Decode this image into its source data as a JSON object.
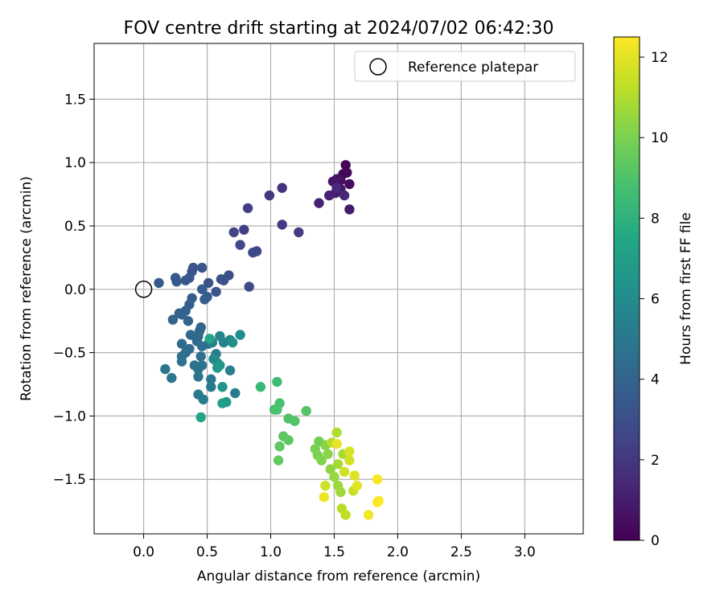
{
  "chart_data": {
    "type": "scatter",
    "title": "FOV centre drift starting at 2024/07/02 06:42:30",
    "xlabel": "Angular distance from reference (arcmin)",
    "ylabel": "Rotation from reference (arcmin)",
    "xlim": [
      -0.39,
      3.46
    ],
    "ylim": [
      -1.93,
      1.94
    ],
    "xticks": [
      "0.0",
      "0.5",
      "1.0",
      "1.5",
      "2.0",
      "2.5",
      "3.0"
    ],
    "yticks": [
      "−1.5",
      "−1.0",
      "−0.5",
      "0.0",
      "0.5",
      "1.0",
      "1.5"
    ],
    "xtick_values": [
      0,
      0.5,
      1,
      1.5,
      2,
      2.5,
      3
    ],
    "ytick_values": [
      -1.5,
      -1.0,
      -0.5,
      0.0,
      0.5,
      1.0,
      1.5
    ],
    "grid": true,
    "legend": {
      "position": "top-right",
      "entries": [
        "Reference platepar"
      ]
    },
    "reference_point": {
      "x": 0.0,
      "y": 0.0,
      "label": "Reference platepar"
    },
    "colorbar": {
      "label": "Hours from first FF file",
      "min": 0,
      "max": 12.5,
      "ticks": [
        "0",
        "2",
        "4",
        "6",
        "8",
        "10",
        "12"
      ],
      "tick_values": [
        0,
        2,
        4,
        6,
        8,
        10,
        12
      ],
      "colormap": "viridis"
    },
    "points": [
      [
        1.59,
        0.98,
        0.1
      ],
      [
        1.57,
        0.91,
        0.2
      ],
      [
        1.6,
        0.92,
        0.3
      ],
      [
        1.62,
        0.83,
        0.4
      ],
      [
        1.55,
        0.86,
        0.5
      ],
      [
        1.52,
        0.87,
        0.6
      ],
      [
        1.49,
        0.85,
        0.7
      ],
      [
        1.55,
        0.79,
        0.8
      ],
      [
        1.62,
        0.63,
        0.9
      ],
      [
        1.51,
        0.76,
        1.0
      ],
      [
        1.46,
        0.74,
        1.1
      ],
      [
        1.38,
        0.68,
        1.2
      ],
      [
        1.58,
        0.74,
        1.4
      ],
      [
        1.52,
        0.8,
        1.5
      ],
      [
        1.09,
        0.8,
        1.8
      ],
      [
        0.99,
        0.74,
        2.0
      ],
      [
        1.09,
        0.51,
        2.1
      ],
      [
        1.22,
        0.45,
        2.2
      ],
      [
        0.82,
        0.64,
        2.3
      ],
      [
        0.79,
        0.47,
        2.4
      ],
      [
        0.71,
        0.45,
        2.5
      ],
      [
        0.76,
        0.35,
        2.6
      ],
      [
        0.89,
        0.3,
        2.7
      ],
      [
        0.86,
        0.29,
        2.8
      ],
      [
        0.83,
        0.02,
        2.9
      ],
      [
        0.67,
        0.11,
        3.0
      ],
      [
        0.61,
        0.08,
        3.1
      ],
      [
        0.63,
        0.07,
        3.1
      ],
      [
        0.57,
        -0.02,
        3.2
      ],
      [
        0.51,
        0.05,
        3.2
      ],
      [
        0.46,
        0.17,
        3.3
      ],
      [
        0.39,
        0.17,
        3.3
      ],
      [
        0.38,
        0.14,
        3.3
      ],
      [
        0.36,
        0.09,
        3.4
      ],
      [
        0.33,
        0.07,
        3.4
      ],
      [
        0.25,
        0.09,
        3.4
      ],
      [
        0.26,
        0.06,
        3.5
      ],
      [
        0.12,
        0.05,
        3.5
      ],
      [
        0.46,
        0.0,
        3.6
      ],
      [
        0.5,
        -0.06,
        3.6
      ],
      [
        0.48,
        -0.08,
        3.7
      ],
      [
        0.38,
        -0.07,
        3.7
      ],
      [
        0.36,
        -0.12,
        3.8
      ],
      [
        0.28,
        -0.19,
        3.8
      ],
      [
        0.33,
        -0.17,
        3.9
      ],
      [
        0.3,
        -0.2,
        3.9
      ],
      [
        0.23,
        -0.24,
        4.0
      ],
      [
        0.35,
        -0.25,
        4.0
      ],
      [
        0.44,
        -0.33,
        4.1
      ],
      [
        0.45,
        -0.3,
        4.1
      ],
      [
        0.37,
        -0.36,
        4.2
      ],
      [
        0.43,
        -0.37,
        4.2
      ],
      [
        0.42,
        -0.41,
        4.3
      ],
      [
        0.3,
        -0.43,
        4.3
      ],
      [
        0.36,
        -0.47,
        4.4
      ],
      [
        0.33,
        -0.5,
        4.4
      ],
      [
        0.46,
        -0.45,
        4.5
      ],
      [
        0.51,
        -0.43,
        4.5
      ],
      [
        0.45,
        -0.53,
        4.6
      ],
      [
        0.3,
        -0.53,
        4.6
      ],
      [
        0.3,
        -0.57,
        4.7
      ],
      [
        0.4,
        -0.6,
        4.7
      ],
      [
        0.43,
        -0.63,
        4.8
      ],
      [
        0.46,
        -0.6,
        4.8
      ],
      [
        0.17,
        -0.63,
        4.9
      ],
      [
        0.43,
        -0.69,
        4.9
      ],
      [
        0.22,
        -0.7,
        5.0
      ],
      [
        0.53,
        -0.71,
        5.0
      ],
      [
        0.53,
        -0.77,
        5.1
      ],
      [
        0.43,
        -0.83,
        5.1
      ],
      [
        0.47,
        -0.87,
        5.2
      ],
      [
        0.72,
        -0.82,
        5.2
      ],
      [
        0.68,
        -0.64,
        5.3
      ],
      [
        0.57,
        -0.51,
        5.3
      ],
      [
        0.54,
        -0.42,
        5.4
      ],
      [
        0.63,
        -0.42,
        5.5
      ],
      [
        0.6,
        -0.37,
        5.6
      ],
      [
        0.68,
        -0.4,
        5.7
      ],
      [
        0.58,
        -0.58,
        5.8
      ],
      [
        0.55,
        -0.55,
        5.9
      ],
      [
        0.76,
        -0.36,
        6.0
      ],
      [
        0.7,
        -0.42,
        6.2
      ],
      [
        0.62,
        -0.77,
        6.4
      ],
      [
        0.6,
        -0.6,
        6.5
      ],
      [
        0.58,
        -0.62,
        6.7
      ],
      [
        0.65,
        -0.89,
        6.8
      ],
      [
        0.62,
        -0.9,
        7.0
      ],
      [
        0.52,
        -0.39,
        7.2
      ],
      [
        0.45,
        -1.01,
        7.4
      ],
      [
        0.92,
        -0.77,
        8.3
      ],
      [
        1.05,
        -0.73,
        8.6
      ],
      [
        1.03,
        -0.95,
        8.7
      ],
      [
        1.07,
        -0.9,
        8.8
      ],
      [
        1.05,
        -0.95,
        8.9
      ],
      [
        1.14,
        -1.02,
        9.0
      ],
      [
        1.19,
        -1.04,
        9.1
      ],
      [
        1.28,
        -0.96,
        9.2
      ],
      [
        1.1,
        -1.16,
        9.3
      ],
      [
        1.14,
        -1.19,
        9.4
      ],
      [
        1.07,
        -1.24,
        9.4
      ],
      [
        1.06,
        -1.35,
        9.5
      ],
      [
        1.38,
        -1.2,
        9.8
      ],
      [
        1.35,
        -1.26,
        9.9
      ],
      [
        1.37,
        -1.31,
        10.0
      ],
      [
        1.4,
        -1.35,
        10.1
      ],
      [
        1.43,
        -1.23,
        10.2
      ],
      [
        1.45,
        -1.3,
        10.3
      ],
      [
        1.47,
        -1.42,
        10.4
      ],
      [
        1.5,
        -1.48,
        10.5
      ],
      [
        1.53,
        -1.55,
        10.6
      ],
      [
        1.55,
        -1.6,
        10.7
      ],
      [
        1.53,
        -1.38,
        10.8
      ],
      [
        1.57,
        -1.3,
        10.9
      ],
      [
        1.52,
        -1.13,
        11.0
      ],
      [
        1.48,
        -1.21,
        11.1
      ],
      [
        1.56,
        -1.73,
        11.2
      ],
      [
        1.59,
        -1.78,
        11.3
      ],
      [
        1.65,
        -1.59,
        11.4
      ],
      [
        1.43,
        -1.55,
        11.5
      ],
      [
        1.58,
        -1.44,
        11.6
      ],
      [
        1.62,
        -1.35,
        11.7
      ],
      [
        1.62,
        -1.28,
        11.8
      ],
      [
        1.66,
        -1.47,
        11.9
      ],
      [
        1.68,
        -1.55,
        12.0
      ],
      [
        1.52,
        -1.22,
        12.1
      ],
      [
        1.42,
        -1.64,
        12.2
      ],
      [
        1.77,
        -1.78,
        12.3
      ],
      [
        1.84,
        -1.5,
        12.4
      ],
      [
        1.85,
        -1.67,
        12.5
      ],
      [
        1.84,
        -1.68,
        12.5
      ]
    ]
  }
}
